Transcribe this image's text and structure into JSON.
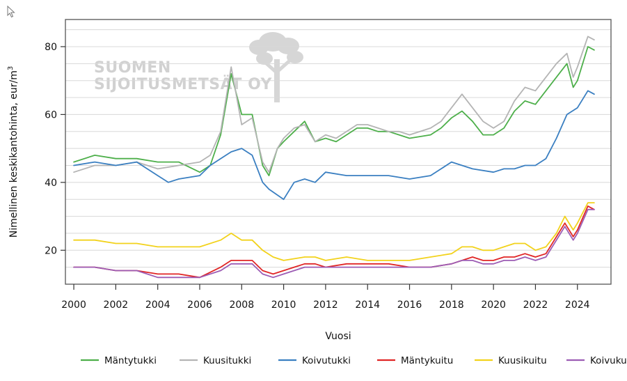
{
  "chart_data": {
    "type": "line",
    "title": "",
    "xlabel": "Vuosi",
    "ylabel": "Nimellinen keskikantohinta, eur/m³",
    "ylabel_main": "Nimellinen keskikantohinta, eur/m",
    "ylabel_sup": "3",
    "xlim": [
      1999.6,
      2025.6
    ],
    "ylim": [
      10,
      88
    ],
    "xticks": [
      2000,
      2002,
      2004,
      2006,
      2008,
      2010,
      2012,
      2014,
      2016,
      2018,
      2020,
      2022,
      2024
    ],
    "yticks": [
      20,
      40,
      60,
      80
    ],
    "grid": true,
    "legend_position": "bottom",
    "watermark": [
      "SUOMEN",
      "SIJOITUSMETSÄT OY"
    ],
    "series": [
      {
        "name": "Mäntytukki",
        "color": "#4daf4a",
        "x": [
          2000,
          2001,
          2002,
          2003,
          2004,
          2005,
          2006,
          2006.5,
          2007,
          2007.5,
          2008,
          2008.5,
          2009,
          2009.3,
          2009.7,
          2010,
          2010.5,
          2011,
          2011.5,
          2012,
          2012.5,
          2013,
          2013.5,
          2014,
          2014.5,
          2015,
          2015.5,
          2016,
          2017,
          2017.5,
          2018,
          2018.5,
          2019,
          2019.5,
          2020,
          2020.5,
          2021,
          2021.5,
          2022,
          2022.5,
          2023,
          2023.5,
          2023.8,
          2024,
          2024.5,
          2024.8
        ],
        "y": [
          46,
          48,
          47,
          47,
          46,
          46,
          43,
          45,
          54,
          72,
          60,
          60,
          45,
          42,
          50,
          52,
          55,
          58,
          52,
          53,
          52,
          54,
          56,
          56,
          55,
          55,
          54,
          53,
          54,
          56,
          59,
          61,
          58,
          54,
          54,
          56,
          61,
          64,
          63,
          67,
          71,
          75,
          68,
          70,
          80,
          79
        ]
      },
      {
        "name": "Kuusitukki",
        "color": "#b4b4b4",
        "x": [
          2000,
          2001,
          2002,
          2003,
          2004,
          2005,
          2006,
          2006.5,
          2007,
          2007.5,
          2008,
          2008.5,
          2009,
          2009.3,
          2009.7,
          2010,
          2010.5,
          2011,
          2011.5,
          2012,
          2012.5,
          2013,
          2013.5,
          2014,
          2014.5,
          2015,
          2015.5,
          2016,
          2017,
          2017.5,
          2018,
          2018.5,
          2019,
          2019.5,
          2020,
          2020.5,
          2021,
          2021.5,
          2022,
          2022.5,
          2023,
          2023.5,
          2023.8,
          2024,
          2024.5,
          2024.8
        ],
        "y": [
          43,
          45,
          45,
          46,
          44,
          45,
          46,
          48,
          55,
          74,
          57,
          59,
          46,
          43,
          50,
          53,
          56,
          57,
          52,
          54,
          53,
          55,
          57,
          57,
          56,
          55,
          55,
          54,
          56,
          58,
          62,
          66,
          62,
          58,
          56,
          58,
          64,
          68,
          67,
          71,
          75,
          78,
          71,
          74,
          83,
          82
        ]
      },
      {
        "name": "Koivutukki",
        "color": "#3a7fc1",
        "x": [
          2000,
          2001,
          2002,
          2003,
          2004,
          2004.5,
          2005,
          2006,
          2006.5,
          2007,
          2007.5,
          2008,
          2008.5,
          2009,
          2009.3,
          2010,
          2010.5,
          2011,
          2011.5,
          2012,
          2013,
          2014,
          2015,
          2016,
          2017,
          2017.5,
          2018,
          2018.5,
          2019,
          2020,
          2020.5,
          2021,
          2021.5,
          2022,
          2022.5,
          2023,
          2023.5,
          2024,
          2024.5,
          2024.8
        ],
        "y": [
          45,
          46,
          45,
          46,
          42,
          40,
          41,
          42,
          45,
          47,
          49,
          50,
          48,
          40,
          38,
          35,
          40,
          41,
          40,
          43,
          42,
          42,
          42,
          41,
          42,
          44,
          46,
          45,
          44,
          43,
          44,
          44,
          45,
          45,
          47,
          53,
          60,
          62,
          67,
          66
        ]
      },
      {
        "name": "Mäntykuitu",
        "color": "#e02525",
        "x": [
          2000,
          2001,
          2002,
          2003,
          2004,
          2005,
          2006,
          2007,
          2007.5,
          2008,
          2008.5,
          2009,
          2009.5,
          2010,
          2010.5,
          2011,
          2011.5,
          2012,
          2013,
          2014,
          2015,
          2016,
          2017,
          2018,
          2018.5,
          2019,
          2019.5,
          2020,
          2020.5,
          2021,
          2021.5,
          2022,
          2022.5,
          2023,
          2023.4,
          2023.8,
          2024,
          2024.5,
          2024.8
        ],
        "y": [
          15,
          15,
          14,
          14,
          13,
          13,
          12,
          15,
          17,
          17,
          17,
          14,
          13,
          14,
          15,
          16,
          16,
          15,
          16,
          16,
          16,
          15,
          15,
          16,
          17,
          18,
          17,
          17,
          18,
          18,
          19,
          18,
          19,
          24,
          28,
          24,
          26,
          33,
          32
        ]
      },
      {
        "name": "Kuusikuitu",
        "color": "#f2d21b",
        "x": [
          2000,
          2001,
          2002,
          2003,
          2004,
          2005,
          2006,
          2007,
          2007.5,
          2008,
          2008.5,
          2009,
          2009.5,
          2010,
          2011,
          2011.5,
          2012,
          2013,
          2014,
          2015,
          2016,
          2017,
          2018,
          2018.5,
          2019,
          2019.5,
          2020,
          2020.5,
          2021,
          2021.5,
          2022,
          2022.5,
          2023,
          2023.4,
          2023.8,
          2024,
          2024.5,
          2024.8
        ],
        "y": [
          23,
          23,
          22,
          22,
          21,
          21,
          21,
          23,
          25,
          23,
          23,
          20,
          18,
          17,
          18,
          18,
          17,
          18,
          17,
          17,
          17,
          18,
          19,
          21,
          21,
          20,
          20,
          21,
          22,
          22,
          20,
          21,
          25,
          30,
          26,
          28,
          34,
          34
        ]
      },
      {
        "name": "Koivukuitu",
        "color": "#9c5cb4",
        "x": [
          2000,
          2001,
          2002,
          2003,
          2004,
          2005,
          2006,
          2007,
          2007.5,
          2008,
          2008.5,
          2009,
          2009.5,
          2010,
          2010.5,
          2011,
          2011.5,
          2012,
          2013,
          2014,
          2015,
          2016,
          2017,
          2018,
          2018.5,
          2019,
          2019.5,
          2020,
          2020.5,
          2021,
          2021.5,
          2022,
          2022.5,
          2023,
          2023.4,
          2023.8,
          2024,
          2024.5,
          2024.8
        ],
        "y": [
          15,
          15,
          14,
          14,
          12,
          12,
          12,
          14,
          16,
          16,
          16,
          13,
          12,
          13,
          14,
          15,
          15,
          15,
          15,
          15,
          15,
          15,
          15,
          16,
          17,
          17,
          16,
          16,
          17,
          17,
          18,
          17,
          18,
          23,
          27,
          23,
          25,
          32,
          32
        ]
      }
    ]
  }
}
